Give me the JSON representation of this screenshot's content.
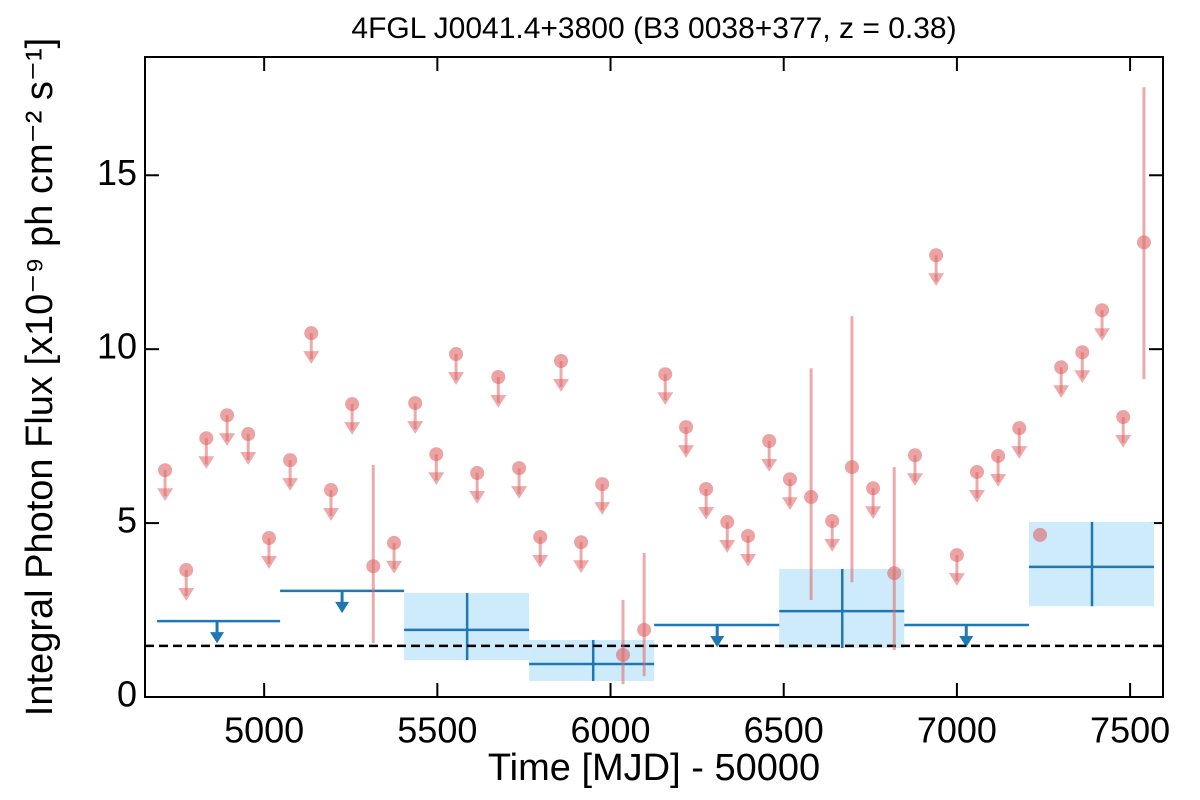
{
  "chart_data": {
    "type": "lightcurve",
    "title": "4FGL J0041.4+3800 (B3 0038+377, z = 0.38)",
    "xlabel": "Time [MJD] - 50000",
    "ylabel": "Integral Photon Flux [x10⁻⁹ ph cm⁻² s⁻¹]",
    "xlim": [
      4656,
      7595
    ],
    "ylim": [
      0,
      18.4
    ],
    "xticks": [
      5000,
      5500,
      6000,
      6500,
      7000,
      7500
    ],
    "yticks": [
      0,
      5,
      10,
      15
    ],
    "hline": 1.47,
    "series": [
      {
        "color": "#e06666",
        "x": [
          4714,
          4775,
          4833,
          4893,
          4954,
          5014,
          5075,
          5136,
          5193,
          5254,
          5315,
          5375,
          5436,
          5497,
          5554,
          5615,
          5676,
          5736,
          5797,
          5857,
          5915,
          5976,
          6036,
          6097,
          6158,
          6218,
          6276,
          6337,
          6397,
          6458,
          6518,
          6579,
          6640,
          6697,
          6758,
          6819,
          6879,
          6940,
          7000,
          7058,
          7119,
          7180,
          7240,
          7301,
          7362,
          7419,
          7480,
          7540
        ],
        "values": [
          6.52,
          3.65,
          7.44,
          8.1,
          7.56,
          4.57,
          6.81,
          10.46,
          5.95,
          8.42,
          3.76,
          4.43,
          8.45,
          6.98,
          9.86,
          6.44,
          9.2,
          6.58,
          4.6,
          9.66,
          4.45,
          6.12,
          1.21,
          1.93,
          9.28,
          7.76,
          5.98,
          5.03,
          4.63,
          7.36,
          6.26,
          5.75,
          5.06,
          6.61,
          6.0,
          3.56,
          6.95,
          12.7,
          4.08,
          6.47,
          6.93,
          7.73,
          4.66,
          9.48,
          9.91,
          11.12,
          8.05,
          13.07
        ],
        "err_low": [
          null,
          null,
          null,
          null,
          null,
          null,
          null,
          null,
          null,
          null,
          1.55,
          null,
          null,
          null,
          null,
          null,
          null,
          null,
          null,
          null,
          null,
          null,
          0.37,
          0.6,
          null,
          null,
          null,
          null,
          null,
          null,
          null,
          2.79,
          null,
          3.3,
          null,
          1.35,
          null,
          null,
          null,
          null,
          null,
          null,
          null,
          null,
          null,
          null,
          null,
          9.14
        ],
        "err_high": [
          null,
          null,
          null,
          null,
          null,
          null,
          null,
          null,
          null,
          null,
          6.67,
          null,
          null,
          null,
          null,
          null,
          null,
          null,
          null,
          null,
          null,
          null,
          2.79,
          4.14,
          null,
          null,
          null,
          null,
          null,
          null,
          null,
          9.45,
          null,
          10.95,
          null,
          6.61,
          null,
          null,
          null,
          null,
          null,
          null,
          null,
          null,
          null,
          null,
          null,
          17.53
        ],
        "upper_limit": [
          true,
          true,
          true,
          true,
          true,
          true,
          true,
          true,
          true,
          true,
          false,
          true,
          true,
          true,
          true,
          true,
          true,
          true,
          true,
          true,
          true,
          true,
          false,
          false,
          true,
          true,
          true,
          true,
          true,
          true,
          true,
          false,
          true,
          false,
          true,
          false,
          true,
          true,
          true,
          true,
          true,
          true,
          false,
          true,
          true,
          true,
          true,
          false
        ]
      },
      {
        "color": "#1f77b4",
        "band_color": "#cdebfa",
        "x": [
          4864,
          5225,
          5586,
          5950,
          6308,
          6669,
          7027,
          7390
        ],
        "x_start": [
          4691,
          5046,
          5404,
          5765,
          6126,
          6487,
          6848,
          7208
        ],
        "x_end": [
          5046,
          5404,
          5765,
          6126,
          6487,
          6848,
          7208,
          7569
        ],
        "values": [
          2.18,
          3.05,
          1.93,
          0.95,
          2.07,
          2.47,
          2.07,
          3.74
        ],
        "err_low": [
          null,
          null,
          1.06,
          0.46,
          null,
          1.41,
          null,
          2.61
        ],
        "err_high": [
          null,
          null,
          2.99,
          1.64,
          null,
          3.68,
          null,
          5.03
        ],
        "upper_limit": [
          true,
          true,
          false,
          false,
          true,
          false,
          true,
          false
        ]
      }
    ]
  }
}
